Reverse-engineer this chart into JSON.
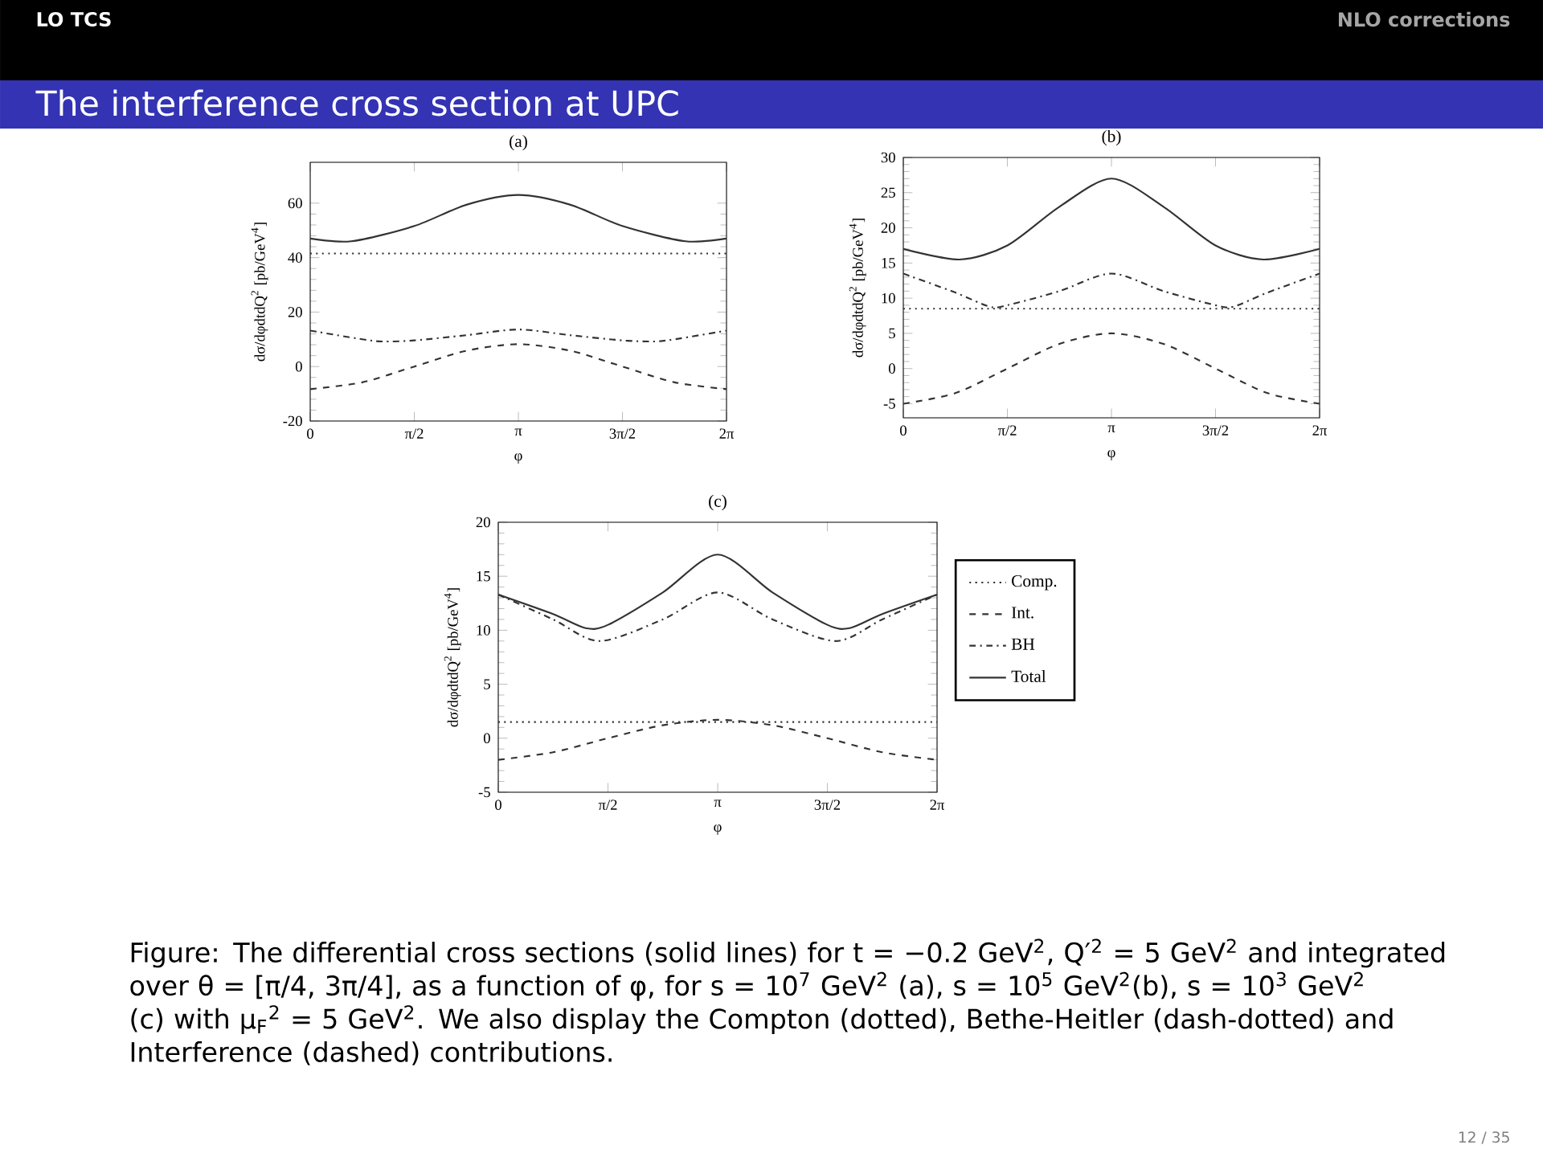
{
  "chart_data": [
    {
      "type": "line",
      "title": "(a)",
      "xlabel": "φ",
      "ylabel": "dσ/dφdtdQ$^{2}$ [pb/GeV$^{4}$]",
      "annotations": [
        "LO TCS",
        "NLO corrections",
        "The interference cross section at UPC",
        "Figure: The differential cross sections (solid lines) for t = −0.2 GeV$^{2}$, Q′$^{2}$ = 5 GeV$^{2}$ and integrated over θ = [π/4, 3π/4], as a function of φ, for s = 10$^{7}$ GeV$^{2}$ (a), s = 10$^{5}$ GeV$^{2}$(b), s = 10$^{3}$ GeV$^{2}$ (c) with μ$_{F}$$^{2}$ = 5 GeV$^{2}$. We also display the Compton (dotted), Bethe-Heitler (dash-dotted) and Interference (dashed) contributions.",
        "12 / 35"
      ],
      "xlim": [
        0,
        6.283
      ],
      "ylim": [
        -20,
        75
      ],
      "xticks": [
        {
          "value": 0,
          "label": "0"
        },
        {
          "value": 1.571,
          "label": "π/2"
        },
        {
          "value": 3.142,
          "label": "π"
        },
        {
          "value": 4.712,
          "label": "3π/2"
        },
        {
          "value": 6.283,
          "label": "2π"
        }
      ],
      "yticks": [
        -20,
        0,
        20,
        40,
        60
      ],
      "series": [
        {
          "color": "#333333",
          "line_style": "dotted",
          "x": [
            0,
            6.283
          ],
          "values": [
            41.5,
            41.5
          ]
        },
        {
          "color": "#333333",
          "line_style": "dashed",
          "x": [
            0,
            0.785,
            1.571,
            2.356,
            3.142,
            3.927,
            4.712,
            5.498,
            6.283
          ],
          "values": [
            -8.3,
            -5.8,
            0,
            5.8,
            8.2,
            5.8,
            0,
            -5.8,
            -8.3
          ]
        },
        {
          "color": "#333333",
          "line_style": "dashdotted",
          "x": [
            0,
            0.785,
            1.1,
            1.571,
            2.356,
            3.142,
            3.927,
            4.712,
            5.183,
            5.498,
            6.283
          ],
          "values": [
            13.2,
            10.0,
            9.2,
            9.6,
            11.5,
            13.6,
            11.5,
            9.6,
            9.2,
            10.0,
            13.2
          ]
        },
        {
          "color": "#333333",
          "line_style": "solid",
          "x": [
            0,
            0.62,
            1.571,
            2.356,
            3.142,
            3.927,
            4.712,
            5.663,
            6.283
          ],
          "values": [
            47,
            46,
            51.6,
            59.4,
            63,
            59.4,
            51.6,
            46,
            47
          ]
        }
      ]
    },
    {
      "type": "line",
      "title": "(b)",
      "xlabel": "φ",
      "ylabel": "dσ/dφdtdQ$^{2}$ [pb/GeV$^{4}$]",
      "xlim": [
        0,
        6.283
      ],
      "ylim": [
        -7,
        30
      ],
      "xticks": [
        {
          "value": 0,
          "label": "0"
        },
        {
          "value": 1.571,
          "label": "π/2"
        },
        {
          "value": 3.142,
          "label": "π"
        },
        {
          "value": 4.712,
          "label": "3π/2"
        },
        {
          "value": 6.283,
          "label": "2π"
        }
      ],
      "yticks": [
        -5,
        0,
        5,
        10,
        15,
        20,
        25,
        30
      ],
      "series": [
        {
          "color": "#333333",
          "line_style": "dotted",
          "x": [
            0,
            6.283
          ],
          "values": [
            8.5,
            8.5
          ]
        },
        {
          "color": "#333333",
          "line_style": "dashed",
          "x": [
            0,
            0.785,
            1.571,
            2.356,
            3.142,
            3.927,
            4.712,
            5.498,
            6.283
          ],
          "values": [
            -5,
            -3.5,
            0,
            3.5,
            5,
            3.5,
            0,
            -3.5,
            -5
          ]
        },
        {
          "color": "#333333",
          "line_style": "dashdotted",
          "x": [
            0,
            0.785,
            1.3,
            1.571,
            2.356,
            3.142,
            3.927,
            4.712,
            4.983,
            5.498,
            6.283
          ],
          "values": [
            13.5,
            10.8,
            8.8,
            9.0,
            11.0,
            13.5,
            11.0,
            9.0,
            8.8,
            10.8,
            13.5
          ]
        },
        {
          "color": "#333333",
          "line_style": "solid",
          "x": [
            0,
            0.85,
            1.571,
            2.356,
            3.142,
            3.927,
            4.712,
            5.433,
            6.283
          ],
          "values": [
            17,
            15.5,
            17.5,
            23,
            27,
            23,
            17.5,
            15.5,
            17
          ]
        }
      ]
    },
    {
      "type": "line",
      "title": "(c)",
      "xlabel": "φ",
      "ylabel": "dσ/dφdtdQ$^{2}$ [pb/GeV$^{4}$]",
      "legend": "right",
      "xlim": [
        0,
        6.283
      ],
      "ylim": [
        -5,
        20
      ],
      "xticks": [
        {
          "value": 0,
          "label": "0"
        },
        {
          "value": 1.571,
          "label": "π/2"
        },
        {
          "value": 3.142,
          "label": "π"
        },
        {
          "value": 4.712,
          "label": "3π/2"
        },
        {
          "value": 6.283,
          "label": "2π"
        }
      ],
      "yticks": [
        -5,
        0,
        5,
        10,
        15,
        20
      ],
      "series": [
        {
          "name": "Comp.",
          "color": "#333333",
          "line_style": "dotted",
          "x": [
            0,
            6.283
          ],
          "values": [
            1.5,
            1.5
          ]
        },
        {
          "name": "Int.",
          "color": "#333333",
          "line_style": "dashed",
          "x": [
            0,
            0.785,
            1.571,
            2.356,
            3.142,
            3.927,
            4.712,
            5.498,
            6.283
          ],
          "values": [
            -2,
            -1.3,
            0,
            1.2,
            1.7,
            1.2,
            0,
            -1.3,
            -2
          ]
        },
        {
          "name": "BH",
          "color": "#333333",
          "line_style": "dashdotted",
          "x": [
            0,
            0.785,
            1.45,
            2.356,
            3.142,
            3.927,
            4.833,
            5.498,
            6.283
          ],
          "values": [
            13.3,
            11.0,
            9.0,
            11.0,
            13.5,
            11.0,
            9.0,
            11.0,
            13.3
          ]
        },
        {
          "name": "Total",
          "color": "#333333",
          "line_style": "solid",
          "x": [
            0,
            0.785,
            1.25,
            1.571,
            2.356,
            3.142,
            3.927,
            4.712,
            5.033,
            5.498,
            6.283
          ],
          "values": [
            13.3,
            11.5,
            10.2,
            10.5,
            13.5,
            17,
            13.5,
            10.5,
            10.2,
            11.5,
            13.3
          ]
        }
      ]
    }
  ]
}
